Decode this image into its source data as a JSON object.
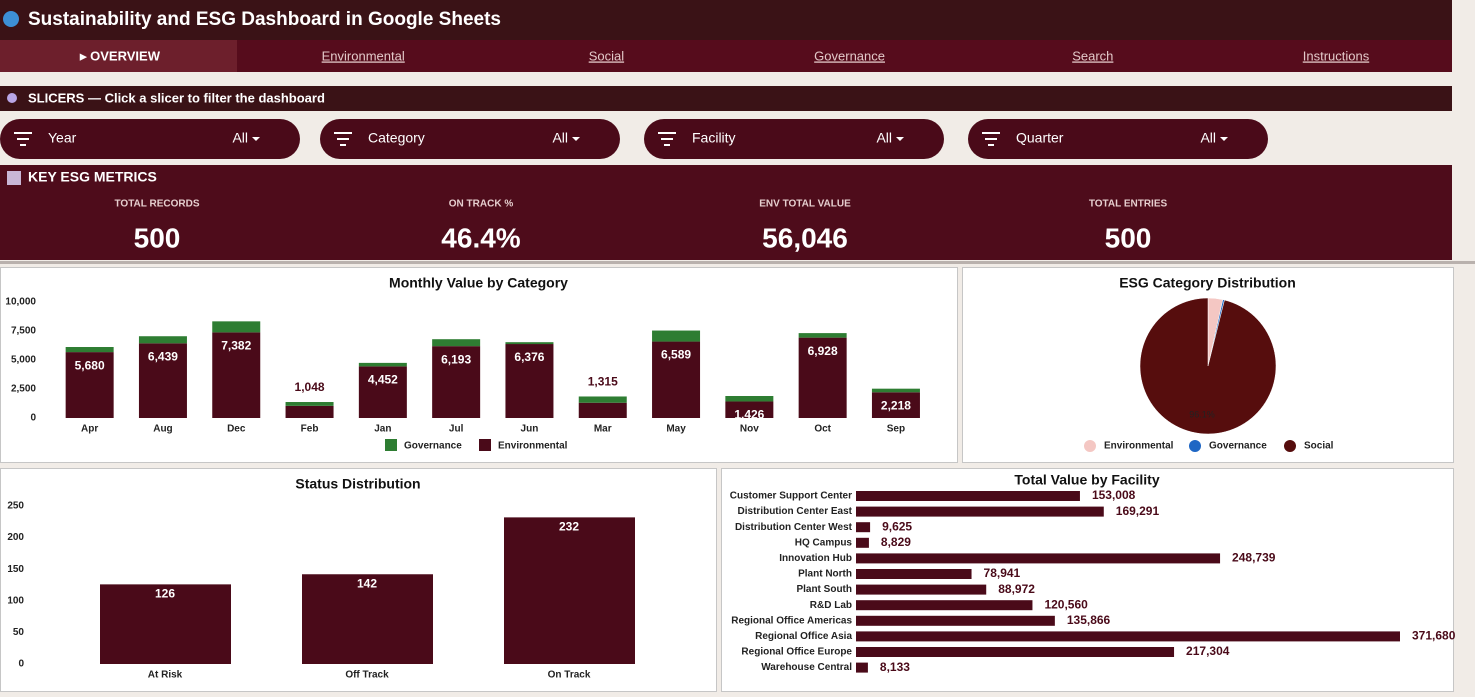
{
  "header": {
    "title": "Sustainability and ESG Dashboard in Google Sheets"
  },
  "tabs": [
    "▸ OVERVIEW",
    "Environmental",
    "Social",
    "Governance",
    "Search",
    "Instructions"
  ],
  "slicers": {
    "title": "SLICERS — Click a slicer to filter the dashboard",
    "items": [
      {
        "label": "Year",
        "value": "All"
      },
      {
        "label": "Category",
        "value": "All"
      },
      {
        "label": "Facility",
        "value": "All"
      },
      {
        "label": "Quarter",
        "value": "All"
      }
    ]
  },
  "metrics": {
    "title": "KEY ESG METRICS",
    "items": [
      {
        "label": "TOTAL RECORDS",
        "value": "500"
      },
      {
        "label": "ON TRACK %",
        "value": "46.4%"
      },
      {
        "label": "ENV TOTAL VALUE",
        "value": "56,046"
      },
      {
        "label": "TOTAL ENTRIES",
        "value": "500"
      }
    ]
  },
  "chart_data": [
    {
      "type": "stacked_bar",
      "title": "Monthly Value by Category",
      "categories": [
        "Apr",
        "Aug",
        "Dec",
        "Feb",
        "Jan",
        "Jul",
        "Jun",
        "Mar",
        "May",
        "Nov",
        "Oct",
        "Sep"
      ],
      "series": [
        {
          "name": "Governance",
          "color": "#2e7d32",
          "values": [
            440,
            610,
            950,
            330,
            300,
            600,
            160,
            540,
            950,
            470,
            390,
            310
          ]
        },
        {
          "name": "Environmental",
          "color": "#4a0a19",
          "values": [
            5680,
            6439,
            7382,
            1048,
            4452,
            6193,
            6376,
            1315,
            6589,
            1426,
            6928,
            2218
          ],
          "value_labels": [
            "5,680",
            "6,439",
            "7,382",
            "1,048",
            "4,452",
            "6,193",
            "6,376",
            "1,315",
            "6,589",
            "1,426",
            "6,928",
            "2,218"
          ]
        }
      ],
      "ylim": [
        0,
        10000
      ],
      "yticks": [
        0,
        {
          "value": 2500,
          "label": "2,500"
        },
        {
          "value": 5000,
          "label": "5,000"
        },
        {
          "value": 7500,
          "label": "7,500"
        },
        {
          "value": 10000,
          "label": "10,000"
        }
      ],
      "grid": false
    },
    {
      "type": "pie",
      "title": "ESG Category Distribution",
      "categories": [
        "Environmental",
        "Governance",
        "Social"
      ],
      "values": [
        3.5,
        0.4,
        96.1
      ],
      "value_labels": [
        null,
        null,
        "96.1%"
      ],
      "colors": [
        "#f4c7c3",
        "#1e66c4",
        "#560d0d"
      ]
    },
    {
      "type": "bar",
      "title": "Status Distribution",
      "categories": [
        "At Risk",
        "Off Track",
        "On Track"
      ],
      "values": [
        126,
        142,
        232
      ],
      "color": "#4a0a19",
      "ylim": [
        0,
        250
      ],
      "yticks": [
        0,
        50,
        100,
        150,
        200,
        250
      ],
      "grid": false
    },
    {
      "type": "hbar",
      "title": "Total Value by Facility",
      "categories": [
        "Customer Support Center",
        "Distribution Center East",
        "Distribution Center West",
        "HQ Campus",
        "Innovation Hub",
        "Plant North",
        "Plant South",
        "R&D Lab",
        "Regional Office Americas",
        "Regional Office Asia",
        "Regional Office Europe",
        "Warehouse Central"
      ],
      "values": [
        153008,
        169291,
        9625,
        8829,
        248739,
        78941,
        88972,
        120560,
        135866,
        371680,
        217304,
        8133
      ],
      "value_labels": [
        "153,008",
        "169,291",
        "9,625",
        "8,829",
        "248,739",
        "78,941",
        "88,972",
        "120,560",
        "135,866",
        "371,680",
        "217,304",
        "8,133"
      ],
      "color": "#4a0a19"
    }
  ]
}
